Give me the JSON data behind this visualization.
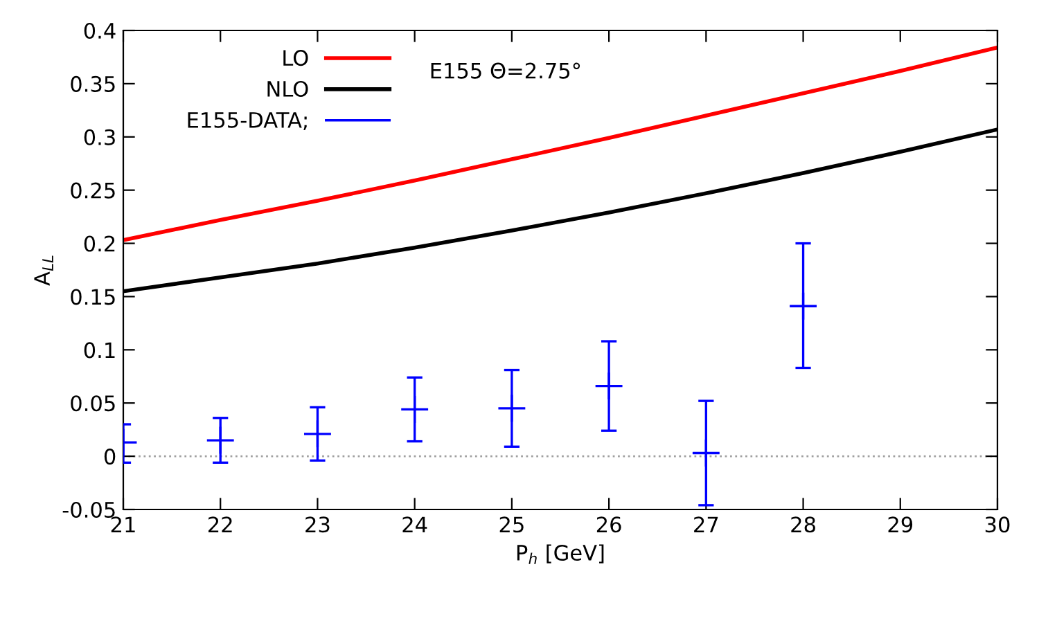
{
  "chart_data": {
    "type": "line",
    "xlabel": "P$_{h}$ [GeV]",
    "ylabel": "A$_{LL}$",
    "annotations": [
      "E155 Θ=2.75°"
    ],
    "xlim": [
      21,
      30
    ],
    "xticks": [
      21,
      22,
      23,
      24,
      25,
      26,
      27,
      28,
      29,
      30
    ],
    "ylim": [
      -0.05,
      0.4
    ],
    "yticks": [
      -0.05,
      0,
      0.05,
      0.1,
      0.15,
      0.2,
      0.25,
      0.3,
      0.35,
      0.4
    ],
    "legend": "top left",
    "grid": false,
    "ref_lines": [
      {
        "axis": "y",
        "value": 0,
        "color": "#a0a0a0",
        "line_style": "dotted"
      }
    ],
    "series": [
      {
        "name": "LO",
        "color": "#ff0000",
        "x": [
          21,
          22,
          23,
          24,
          25,
          26,
          27,
          28,
          29,
          30
        ],
        "values": [
          0.203,
          0.222,
          0.24,
          0.259,
          0.279,
          0.299,
          0.32,
          0.341,
          0.362,
          0.384
        ]
      },
      {
        "name": "NLO",
        "color": "#000000",
        "x": [
          21,
          22,
          23,
          24,
          25,
          26,
          27,
          28,
          29,
          30
        ],
        "values": [
          0.155,
          0.168,
          0.181,
          0.196,
          0.212,
          0.229,
          0.247,
          0.266,
          0.286,
          0.307
        ]
      },
      {
        "name": "E155-DATA;",
        "type": "scatter",
        "marker": "cross",
        "color": "#0000ff",
        "x": [
          21,
          22,
          23,
          24,
          25,
          26,
          27,
          28
        ],
        "values": [
          0.013,
          0.015,
          0.021,
          0.044,
          0.045,
          0.066,
          0.003,
          0.141
        ],
        "errors": [
          [
            -0.006,
            0.03
          ],
          [
            -0.006,
            0.036
          ],
          [
            -0.004,
            0.046
          ],
          [
            0.014,
            0.074
          ],
          [
            0.009,
            0.081
          ],
          [
            0.024,
            0.108
          ],
          [
            -0.046,
            0.052
          ],
          [
            0.083,
            0.2
          ]
        ]
      }
    ]
  }
}
